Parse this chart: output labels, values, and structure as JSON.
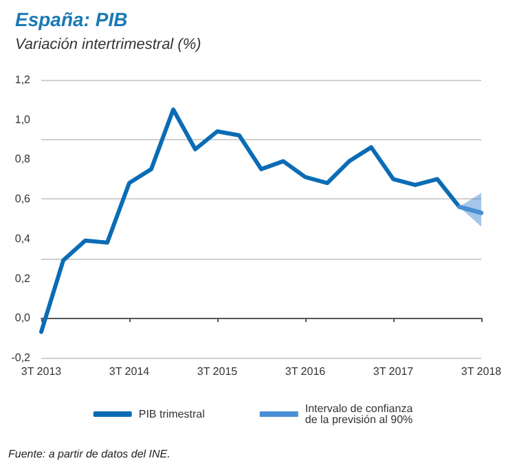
{
  "chart_data": {
    "type": "line",
    "title": "España: PIB",
    "subtitle": "Variación intertrimestral (%)",
    "categories": [
      "3T 2013",
      null,
      null,
      null,
      "3T 2014",
      null,
      null,
      null,
      "3T 2015",
      null,
      null,
      null,
      "3T 2016",
      null,
      null,
      null,
      "3T 2017",
      null,
      null,
      null,
      "3T 2018"
    ],
    "series": [
      {
        "name": "PIB trimestral",
        "color": "#0b6cb5",
        "values": [
          -0.07,
          0.29,
          0.39,
          0.38,
          0.68,
          0.75,
          1.05,
          0.85,
          0.94,
          0.92,
          0.75,
          0.79,
          0.71,
          0.68,
          0.79,
          0.86,
          0.7,
          0.67,
          0.7,
          0.56,
          0.53
        ]
      },
      {
        "name": "Intervalo de confianza\nde la previsión al 90%",
        "type": "line",
        "color": "#4a8fd4",
        "values": [
          null,
          null,
          null,
          null,
          null,
          null,
          null,
          null,
          null,
          null,
          null,
          null,
          null,
          null,
          null,
          null,
          null,
          null,
          null,
          0.56,
          0.53
        ],
        "lower": [
          null,
          null,
          null,
          null,
          null,
          null,
          null,
          null,
          null,
          null,
          null,
          null,
          null,
          null,
          null,
          null,
          null,
          null,
          null,
          0.56,
          0.46
        ],
        "upper": [
          null,
          null,
          null,
          null,
          null,
          null,
          null,
          null,
          null,
          null,
          null,
          null,
          null,
          null,
          null,
          null,
          null,
          null,
          null,
          0.56,
          0.63
        ]
      }
    ],
    "ylim": [
      -0.2,
      1.2
    ],
    "yticks": [
      {
        "value": -0.2,
        "label": "-0,2"
      },
      {
        "value": 0,
        "label": "0,0"
      },
      {
        "value": 0.2,
        "label": "0,2"
      },
      {
        "value": 0.4,
        "label": "0,4"
      },
      {
        "value": 0.6,
        "label": "0,6"
      },
      {
        "value": 0.8,
        "label": "0,8"
      },
      {
        "value": 1.0,
        "label": "1,0"
      },
      {
        "value": 1.2,
        "label": "1,2"
      }
    ],
    "grid": "y",
    "legend": "bottom",
    "marker": "none",
    "line_style": "solid",
    "annotations": [
      "Fuente: a partir de datos del INE."
    ]
  }
}
